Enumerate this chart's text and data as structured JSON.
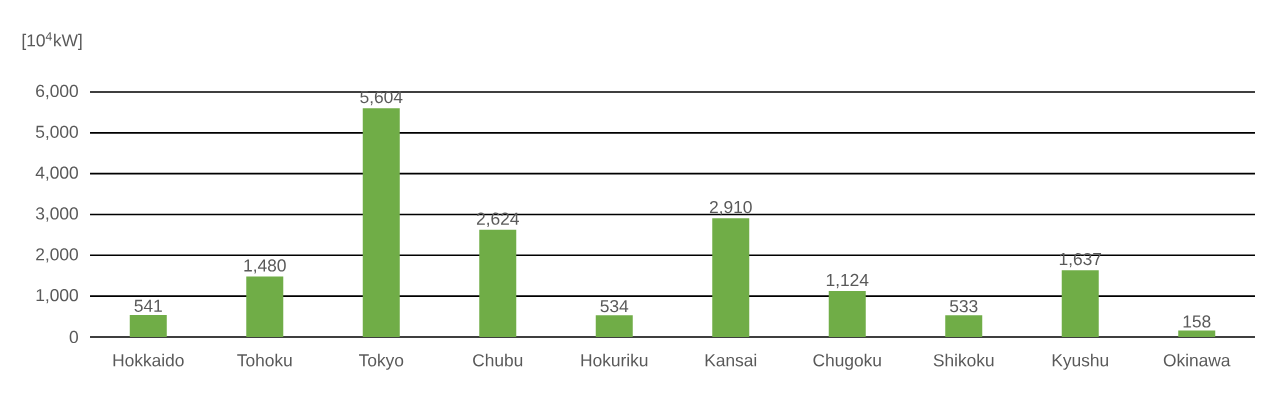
{
  "chart_data": {
    "type": "bar",
    "ylabel": "[10$^{4}$kW]",
    "categories": [
      "Hokkaido",
      "Tohoku",
      "Tokyo",
      "Chubu",
      "Hokuriku",
      "Kansai",
      "Chugoku",
      "Shikoku",
      "Kyushu",
      "Okinawa"
    ],
    "values": [
      541,
      1480,
      5604,
      2624,
      534,
      2910,
      1124,
      533,
      1637,
      158
    ],
    "value_labels": [
      "541",
      "1,480",
      "5,604",
      "2,624",
      "534",
      "2,910",
      "1,124",
      "533",
      "1,637",
      "158"
    ],
    "color": "#70ad47",
    "ylim": [
      0,
      6000
    ],
    "yticks": [
      0,
      {
        "value": 1000,
        "label": "1,000"
      },
      {
        "value": 2000,
        "label": "2,000"
      },
      {
        "value": 3000,
        "label": "3,000"
      },
      {
        "value": 4000,
        "label": "4,000"
      },
      {
        "value": 5000,
        "label": "5,000"
      },
      {
        "value": 6000,
        "label": "6,000"
      }
    ],
    "grid": "y"
  }
}
